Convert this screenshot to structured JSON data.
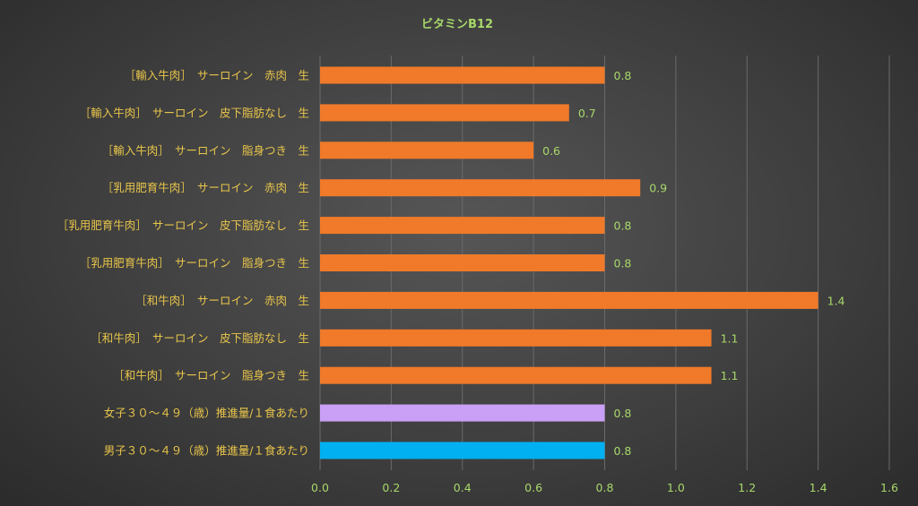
{
  "colors": {
    "background": "#404040",
    "grid": "#6a6a6a",
    "title": "#a8d86a",
    "category_label": "#e8c54a",
    "value_label": "#a8d86a",
    "tick_label": "#a8d86a",
    "bar_default": "#f07a2a",
    "bar_women": "#c9a0f5",
    "bar_men": "#00b0f0"
  },
  "chart_data": {
    "type": "bar",
    "orientation": "horizontal",
    "title": "ビタミンB12",
    "categories": [
      "［輸入牛肉］　サーロイン　赤肉　生",
      "［輸入牛肉］　サーロイン　皮下脂肪なし　生",
      "［輸入牛肉］　サーロイン　脂身つき　生",
      "［乳用肥育牛肉］　サーロイン　赤肉　生",
      "［乳用肥育牛肉］　サーロイン　皮下脂肪なし　生",
      "［乳用肥育牛肉］　サーロイン　脂身つき　生",
      "［和牛肉］　サーロイン　赤肉　生",
      "［和牛肉］　サーロイン　皮下脂肪なし　生",
      "［和牛肉］　サーロイン　脂身つき　生",
      "女子３０～４９（歳）推進量/１食あたり",
      "男子３０～４９（歳）推進量/１食あたり"
    ],
    "values": [
      0.8,
      0.7,
      0.6,
      0.9,
      0.8,
      0.8,
      1.4,
      1.1,
      1.1,
      0.8,
      0.8
    ],
    "value_labels": [
      "0.8",
      "0.7",
      "0.6",
      "0.9",
      "0.8",
      "0.8",
      "1.4",
      "1.1",
      "1.1",
      "0.8",
      "0.8"
    ],
    "bar_color_keys": [
      "bar_default",
      "bar_default",
      "bar_default",
      "bar_default",
      "bar_default",
      "bar_default",
      "bar_default",
      "bar_default",
      "bar_default",
      "bar_women",
      "bar_men"
    ],
    "xlim": [
      0,
      1.6
    ],
    "xticks": [
      0,
      0.2,
      0.4,
      0.6,
      0.8,
      1.0,
      1.2,
      1.4,
      1.6
    ],
    "xtick_labels": [
      "0.0",
      "0.2",
      "0.4",
      "0.6",
      "0.8",
      "1.0",
      "1.2",
      "1.4",
      "1.6"
    ],
    "grid": true,
    "legend": "none"
  }
}
